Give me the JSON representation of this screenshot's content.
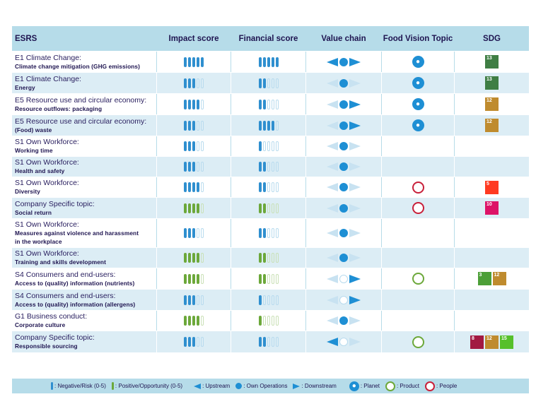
{
  "colors": {
    "negative": "#2f8fcf",
    "positive": "#6ca83a",
    "header_bg": "#b6dce9",
    "alt_bg": "#dcedf5",
    "text": "#1e1450",
    "planet": "#1e8fd4",
    "people": "#c8203a"
  },
  "headers": [
    "ESRS",
    "Impact score",
    "Financial score",
    "Value chain",
    "Food Vision Topic",
    "SDG"
  ],
  "rows": [
    {
      "line1": "E1 Climate Change:",
      "line2": "Climate change mitigation (GHG emissions)",
      "impact": 5,
      "impact_type": "neg",
      "financial": 5,
      "financial_type": "neg",
      "upstream": true,
      "own": true,
      "downstream": true,
      "topic": "planet",
      "sdgs": [
        {
          "num": "13",
          "color": "#3f7e44"
        }
      ]
    },
    {
      "line1": "E1 Climate Change:",
      "line2": "Energy",
      "impact": 3,
      "impact_type": "neg",
      "financial": 2,
      "financial_type": "neg",
      "upstream": false,
      "own": true,
      "downstream": false,
      "topic": "planet",
      "sdgs": [
        {
          "num": "13",
          "color": "#3f7e44"
        }
      ]
    },
    {
      "line1": "E5 Resource use and circular economy:",
      "line2": "Resource outflows: packaging",
      "impact": 4,
      "impact_type": "neg",
      "financial": 2,
      "financial_type": "neg",
      "upstream": false,
      "own": true,
      "downstream": true,
      "topic": "planet",
      "sdgs": [
        {
          "num": "12",
          "color": "#bf8b2e"
        }
      ]
    },
    {
      "line1": "E5 Resource use and circular economy:",
      "line2": "(Food) waste",
      "impact": 3,
      "impact_type": "neg",
      "financial": 4,
      "financial_type": "neg",
      "upstream": false,
      "own": true,
      "downstream": true,
      "topic": "planet",
      "sdgs": [
        {
          "num": "12",
          "color": "#bf8b2e"
        }
      ]
    },
    {
      "line1": "S1 Own Workforce:",
      "line2": "Working time",
      "impact": 3,
      "impact_type": "neg",
      "financial": 1,
      "financial_type": "neg",
      "upstream": false,
      "own": true,
      "downstream": false,
      "topic": "",
      "sdgs": []
    },
    {
      "line1": "S1 Own Workforce:",
      "line2": "Health and safety",
      "impact": 3,
      "impact_type": "neg",
      "financial": 2,
      "financial_type": "neg",
      "upstream": false,
      "own": true,
      "downstream": false,
      "topic": "",
      "sdgs": []
    },
    {
      "line1": "S1 Own Workforce:",
      "line2": "Diversity",
      "impact": 4,
      "impact_type": "neg",
      "financial": 2,
      "financial_type": "neg",
      "upstream": false,
      "own": true,
      "downstream": false,
      "topic": "people",
      "sdgs": [
        {
          "num": "5",
          "color": "#ff3a21"
        }
      ]
    },
    {
      "line1": "Company Specific topic:",
      "line2": "Social return",
      "impact": 4,
      "impact_type": "pos",
      "financial": 2,
      "financial_type": "pos",
      "upstream": false,
      "own": true,
      "downstream": false,
      "topic": "people",
      "sdgs": [
        {
          "num": "10",
          "color": "#dd1367"
        }
      ]
    },
    {
      "line1": "S1 Own Workforce:",
      "line2": "Measures against violence and harassment in the workplace",
      "impact": 3,
      "impact_type": "neg",
      "financial": 2,
      "financial_type": "neg",
      "upstream": false,
      "own": true,
      "downstream": false,
      "topic": "",
      "sdgs": []
    },
    {
      "line1": "S1 Own Workforce:",
      "line2": "Training and skills development",
      "impact": 4,
      "impact_type": "pos",
      "financial": 2,
      "financial_type": "pos",
      "upstream": false,
      "own": true,
      "downstream": false,
      "topic": "",
      "sdgs": []
    },
    {
      "line1": "S4 Consumers and end-users:",
      "line2": "Access to (quality) information (nutrients)",
      "impact": 4,
      "impact_type": "pos",
      "financial": 2,
      "financial_type": "pos",
      "upstream": false,
      "own": false,
      "downstream": true,
      "topic": "product",
      "sdgs": [
        {
          "num": "3",
          "color": "#4c9f38"
        },
        {
          "num": "12",
          "color": "#bf8b2e"
        }
      ]
    },
    {
      "line1": "S4 Consumers and end-users:",
      "line2": "Access to (quality) information (allergens)",
      "impact": 3,
      "impact_type": "neg",
      "financial": 1,
      "financial_type": "neg",
      "upstream": false,
      "own": false,
      "downstream": true,
      "topic": "",
      "sdgs": []
    },
    {
      "line1": "G1 Business conduct:",
      "line2": "Corporate culture",
      "impact": 4,
      "impact_type": "pos",
      "financial": 1,
      "financial_type": "pos",
      "upstream": false,
      "own": true,
      "downstream": false,
      "topic": "",
      "sdgs": []
    },
    {
      "line1": "Company Specific topic:",
      "line2": "Responsible sourcing",
      "impact": 3,
      "impact_type": "neg",
      "financial": 2,
      "financial_type": "neg",
      "upstream": true,
      "own": false,
      "downstream": false,
      "topic": "product",
      "sdgs": [
        {
          "num": "8",
          "color": "#a21942"
        },
        {
          "num": "12",
          "color": "#bf8b2e"
        },
        {
          "num": "15",
          "color": "#56c02b"
        }
      ]
    }
  ],
  "legend": {
    "negative": ": Negative/Risk (0-5)",
    "positive": ": Positive/Opportunity (0-5)",
    "upstream": ": Upstream",
    "own": ": Own Operations",
    "downstream": ": Downstream",
    "planet": ": Planet",
    "product": ": Product",
    "people": ": People"
  }
}
